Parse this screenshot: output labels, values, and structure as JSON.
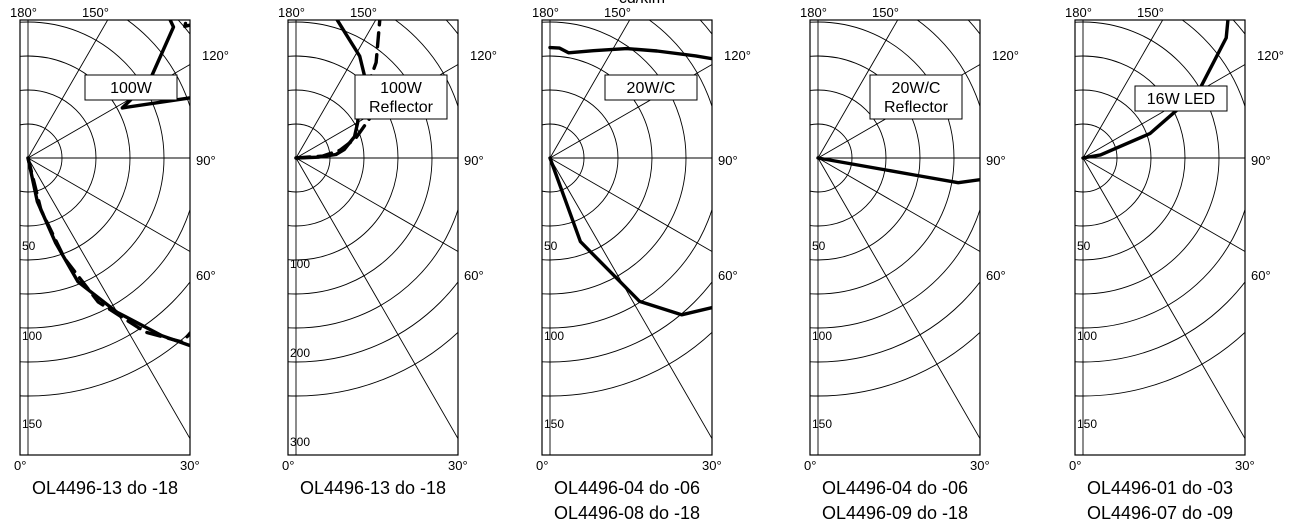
{
  "unit_label": "cd/klm",
  "chart_data": [
    {
      "type": "polar",
      "box_label": [
        "100W"
      ],
      "radial_scale_labels": [
        "50",
        "100",
        "150"
      ],
      "angle_labels": [
        "180°",
        "150°",
        "120°",
        "90°",
        "60°",
        "30°",
        "0°"
      ],
      "caption": [
        "OL4496-13 do -18"
      ],
      "series": [
        {
          "style": "solid",
          "points": [
            [
              180,
              0
            ],
            [
              168,
              25
            ],
            [
              162,
              50
            ],
            [
              158,
              75
            ],
            [
              150,
              100
            ],
            [
              143,
              125
            ],
            [
              139,
              140
            ],
            [
              130,
              120
            ],
            [
              110,
              115
            ],
            [
              95,
              120
            ],
            [
              80,
              120
            ],
            [
              70,
              100
            ],
            [
              62,
              60
            ],
            [
              58,
              80
            ],
            [
              48,
              110
            ],
            [
              30,
              128
            ],
            [
              14,
              145
            ],
            [
              6,
              152
            ],
            [
              0,
              153
            ]
          ]
        },
        {
          "style": "dashed",
          "points": [
            [
              180,
              0
            ],
            [
              166,
              30
            ],
            [
              160,
              60
            ],
            [
              154,
              90
            ],
            [
              146,
              118
            ],
            [
              140,
              135
            ],
            [
              130,
              133
            ],
            [
              115,
              128
            ],
            [
              100,
              135
            ],
            [
              85,
              148
            ],
            [
              70,
              160
            ],
            [
              62,
              175
            ],
            [
              60,
              170
            ],
            [
              55,
              140
            ],
            [
              50,
              115
            ],
            [
              44,
              135
            ],
            [
              38,
              155
            ],
            [
              30,
              182
            ],
            [
              25,
              178
            ],
            [
              20,
              170
            ],
            [
              10,
              160
            ],
            [
              5,
              160
            ]
          ]
        }
      ]
    },
    {
      "type": "polar",
      "box_label": [
        "100W",
        "Reflector"
      ],
      "radial_scale_labels": [
        "100",
        "200",
        "300"
      ],
      "angle_labels": [
        "180°",
        "150°",
        "120°",
        "90°",
        "60°",
        "30°",
        "0°"
      ],
      "caption": [
        "OL4496-13 do -18"
      ],
      "series": [
        {
          "style": "solid",
          "points": [
            [
              90,
              0
            ],
            [
              88,
              25
            ],
            [
              85,
              45
            ],
            [
              80,
              55
            ],
            [
              70,
              70
            ],
            [
              60,
              80
            ],
            [
              50,
              92
            ],
            [
              45,
              100
            ],
            [
              40,
              120
            ],
            [
              32,
              135
            ],
            [
              22,
              150
            ],
            [
              12,
              175
            ],
            [
              5,
              180
            ],
            [
              0,
              182
            ]
          ]
        },
        {
          "style": "dashed",
          "points": [
            [
              90,
              0
            ],
            [
              86,
              30
            ],
            [
              80,
              50
            ],
            [
              72,
              70
            ],
            [
              66,
              82
            ],
            [
              60,
              100
            ],
            [
              55,
              112
            ],
            [
              48,
              102
            ],
            [
              40,
              140
            ],
            [
              30,
              190
            ],
            [
              25,
              225
            ],
            [
              20,
              235
            ],
            [
              15,
              240
            ],
            [
              10,
              220
            ],
            [
              6,
              200
            ],
            [
              2,
              185
            ],
            [
              0,
              183
            ]
          ]
        }
      ]
    },
    {
      "type": "polar",
      "box_label": [
        "20W/C"
      ],
      "radial_scale_labels": [
        "50",
        "100",
        "150"
      ],
      "angle_labels": [
        "180°",
        "150°",
        "120°",
        "90°",
        "60°",
        "30°",
        "0°"
      ],
      "caption": [
        "OL4496-04 do -06",
        "OL4496-08 do -18"
      ],
      "series": [
        {
          "style": "solid",
          "points": [
            [
              180,
              0
            ],
            [
              160,
              50
            ],
            [
              148,
              95
            ],
            [
              140,
              115
            ],
            [
              132,
              125
            ],
            [
              120,
              128
            ],
            [
              110,
              130
            ],
            [
              100,
              140
            ],
            [
              92,
              140
            ],
            [
              88,
              150
            ],
            [
              80,
              155
            ],
            [
              72,
              145
            ],
            [
              65,
              128
            ],
            [
              62,
              115
            ],
            [
              55,
              100
            ],
            [
              45,
              85
            ],
            [
              35,
              75
            ],
            [
              22,
              65
            ],
            [
              10,
              60
            ],
            [
              5,
              62
            ],
            [
              0,
              62
            ]
          ]
        }
      ]
    },
    {
      "type": "polar",
      "box_label": [
        "20W/C",
        "Reflector"
      ],
      "radial_scale_labels": [
        "50",
        "100",
        "150"
      ],
      "angle_labels": [
        "180°",
        "150°",
        "120°",
        "90°",
        "60°",
        "30°",
        "0°"
      ],
      "caption": [
        "OL4496-04 do -06",
        "OL4496-09 do -18"
      ],
      "series": [
        {
          "style": "solid",
          "points": [
            [
              92,
              0
            ],
            [
              100,
              55
            ],
            [
              100,
              80
            ],
            [
              95,
              110
            ],
            [
              85,
              145
            ],
            [
              75,
              160
            ],
            [
              65,
              170
            ],
            [
              55,
              165
            ],
            [
              50,
              160
            ],
            [
              42,
              150
            ],
            [
              35,
              140
            ],
            [
              28,
              137
            ],
            [
              22,
              142
            ],
            [
              15,
              135
            ],
            [
              8,
              125
            ],
            [
              2,
              118
            ],
            [
              0,
              117
            ]
          ]
        }
      ]
    },
    {
      "type": "polar",
      "box_label": [
        "16W LED"
      ],
      "radial_scale_labels": [
        "50",
        "100",
        "150"
      ],
      "angle_labels": [
        "180°",
        "150°",
        "120°",
        "90°",
        "60°",
        "30°",
        "0°"
      ],
      "caption": [
        "OL4496-01 do -03",
        "OL4496-07 do -09"
      ],
      "series": [
        {
          "style": "solid",
          "points": [
            [
              85,
              0
            ],
            [
              80,
              10
            ],
            [
              70,
              40
            ],
            [
              60,
              75
            ],
            [
              50,
              105
            ],
            [
              40,
              130
            ],
            [
              30,
              148
            ],
            [
              20,
              160
            ],
            [
              10,
              168
            ],
            [
              5,
              170
            ],
            [
              0,
              170
            ]
          ]
        }
      ]
    }
  ]
}
